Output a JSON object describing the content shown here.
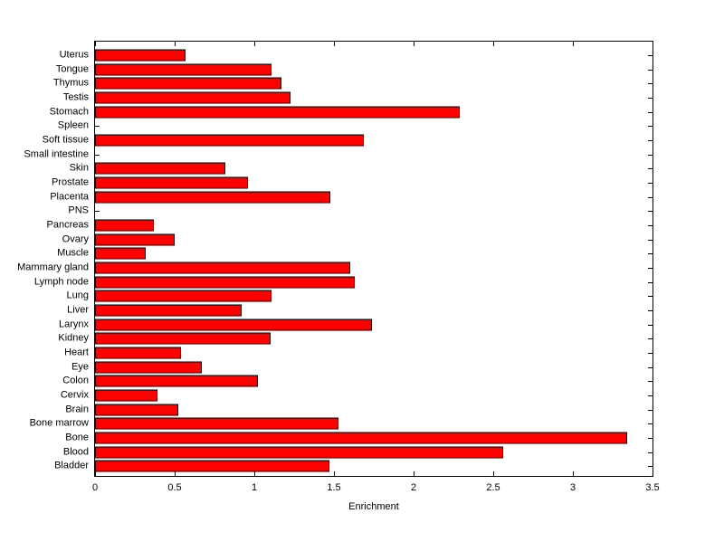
{
  "figure": {
    "background_color": "#ffffff",
    "frame_color": "#000000"
  },
  "chart_data": {
    "type": "bar",
    "orientation": "horizontal",
    "title": "",
    "xlabel": "Enrichment",
    "ylabel": "",
    "xlim": [
      0,
      3.5
    ],
    "xticks": [
      0,
      0.5,
      1,
      1.5,
      2,
      2.5,
      3,
      3.5
    ],
    "xtick_labels": [
      "0",
      "0.5",
      "1",
      "1.5",
      "2",
      "2.5",
      "3",
      "3.5"
    ],
    "grid": false,
    "legend": "none",
    "bar_color": "#ff0000",
    "bar_edge_color": "#000000",
    "categories_top_to_bottom": [
      "Uterus",
      "Tongue",
      "Thymus",
      "Testis",
      "Stomach",
      "Spleen",
      "Soft tissue",
      "Small intestine",
      "Skin",
      "Prostate",
      "Placenta",
      "PNS",
      "Pancreas",
      "Ovary",
      "Muscle",
      "Mammary gland",
      "Lymph node",
      "Lung",
      "Liver",
      "Larynx",
      "Kidney",
      "Heart",
      "Eye",
      "Colon",
      "Cervix",
      "Brain",
      "Bone marrow",
      "Bone",
      "Blood",
      "Bladder"
    ],
    "values_top_to_bottom": [
      0.57,
      1.11,
      1.17,
      1.23,
      2.29,
      0,
      1.69,
      0,
      0.82,
      0.96,
      1.48,
      0,
      0.37,
      0.5,
      0.32,
      1.6,
      1.63,
      1.11,
      0.92,
      1.74,
      1.1,
      0.54,
      0.67,
      1.02,
      0.39,
      0.52,
      1.53,
      3.34,
      2.56,
      1.47
    ]
  }
}
